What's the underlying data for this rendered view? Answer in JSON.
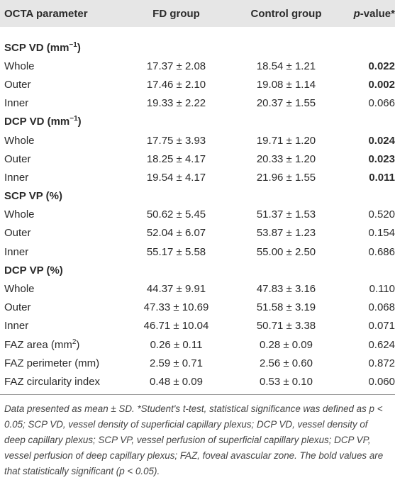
{
  "table": {
    "header": [
      "OCTA parameter",
      "FD group",
      "Control group"
    ],
    "p_header": {
      "italic": "p",
      "rest": "-value*"
    },
    "rows": [
      {
        "label": "SCP VD (mm",
        "sup": "−1",
        "label_end": ")",
        "section": true
      },
      {
        "label": "Whole",
        "fd": "17.37 ± 2.08",
        "control": "18.54 ± 1.21",
        "p": "0.022",
        "bold": true
      },
      {
        "label": "Outer",
        "fd": "17.46 ± 2.10",
        "control": "19.08 ± 1.14",
        "p": "0.002",
        "bold": true
      },
      {
        "label": "Inner",
        "fd": "19.33 ± 2.22",
        "control": "20.37 ± 1.55",
        "p": "0.066"
      },
      {
        "label": "DCP VD (mm",
        "sup": "−1",
        "label_end": ")",
        "section": true
      },
      {
        "label": "Whole",
        "fd": "17.75 ± 3.93",
        "control": "19.71 ± 1.20",
        "p": "0.024",
        "bold": true
      },
      {
        "label": "Outer",
        "fd": "18.25 ± 4.17",
        "control": "20.33 ± 1.20",
        "p": "0.023",
        "bold": true
      },
      {
        "label": "Inner",
        "fd": "19.54 ± 4.17",
        "control": "21.96 ± 1.55",
        "p": "0.011",
        "bold": true
      },
      {
        "label": "SCP VP (%)",
        "section": true
      },
      {
        "label": "Whole",
        "fd": "50.62 ± 5.45",
        "control": "51.37 ± 1.53",
        "p": "0.520"
      },
      {
        "label": "Outer",
        "fd": "52.04 ± 6.07",
        "control": "53.87 ± 1.23",
        "p": "0.154"
      },
      {
        "label": "Inner",
        "fd": "55.17 ± 5.58",
        "control": "55.00 ± 2.50",
        "p": "0.686"
      },
      {
        "label": "DCP VP (%)",
        "section": true
      },
      {
        "label": "Whole",
        "fd": "44.37 ± 9.91",
        "control": "47.83 ± 3.16",
        "p": "0.110"
      },
      {
        "label": "Outer",
        "fd": "47.33 ± 10.69",
        "control": "51.58 ± 3.19",
        "p": "0.068"
      },
      {
        "label": "Inner",
        "fd": "46.71 ± 10.04",
        "control": "50.71 ± 3.38",
        "p": "0.071"
      },
      {
        "label": "FAZ area (mm",
        "sup": "2",
        "label_end": ")",
        "fd": "0.26 ± 0.11",
        "control": "0.28 ± 0.09",
        "p": "0.624"
      },
      {
        "label": "FAZ perimeter (mm)",
        "fd": "2.59 ± 0.71",
        "control": "2.56 ± 0.60",
        "p": "0.872"
      },
      {
        "label": "FAZ circularity index",
        "fd": "0.48 ± 0.09",
        "control": "0.53 ± 0.10",
        "p": "0.060"
      }
    ],
    "footnote": "Data presented as mean ± SD. *Student's t-test, statistical significance was defined as p < 0.05; SCP VD, vessel density of superficial capillary plexus; DCP VD, vessel density of deep capillary plexus; SCP VP, vessel perfusion of superficial capillary plexus; DCP VP, vessel perfusion of deep capillary plexus; FAZ, foveal avascular zone. The bold values are that statistically significant (p < 0.05)."
  }
}
